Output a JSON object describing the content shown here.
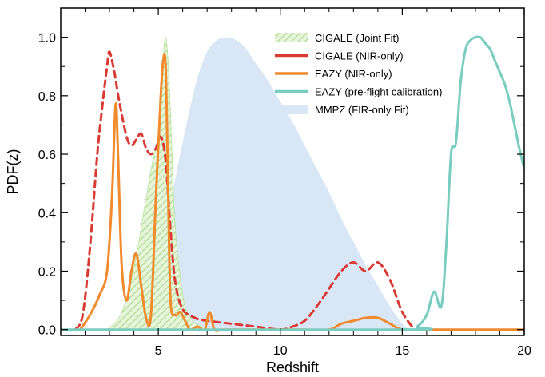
{
  "chart_data": {
    "type": "area",
    "xlabel": "Redshift",
    "ylabel": "PDF(z)",
    "xlim": [
      1,
      20
    ],
    "ylim": [
      -0.02,
      1.1
    ],
    "x_ticks": [
      5,
      10,
      15,
      20
    ],
    "x_tick_labels": [
      "5",
      "10",
      "15",
      "20"
    ],
    "y_ticks": [
      0.0,
      0.2,
      0.4,
      0.6,
      0.8,
      1.0
    ],
    "y_tick_labels": [
      "0.0",
      "0.2",
      "0.4",
      "0.6",
      "0.8",
      "1.0"
    ],
    "legend_position": "top-right",
    "series": [
      {
        "name": "MMPZ (FIR-only Fit)",
        "style": "filled",
        "color": "#d9e6f5",
        "x": [
          4.3,
          4.8,
          5.3,
          5.8,
          6.2,
          6.6,
          7.0,
          7.4,
          7.8,
          8.2,
          8.6,
          9.0,
          9.5,
          10.0,
          10.5,
          11.0,
          11.5,
          12.0,
          12.5,
          13.0,
          13.5,
          14.0,
          14.5,
          15.0,
          15.3
        ],
        "values": [
          0.0,
          0.12,
          0.34,
          0.56,
          0.72,
          0.86,
          0.95,
          0.99,
          1.0,
          0.99,
          0.96,
          0.91,
          0.85,
          0.78,
          0.71,
          0.63,
          0.55,
          0.47,
          0.38,
          0.3,
          0.22,
          0.15,
          0.08,
          0.02,
          0.0
        ]
      },
      {
        "name": "CIGALE (Joint Fit)",
        "style": "hatched",
        "color": "#b9e39c",
        "x": [
          2.9,
          3.3,
          3.6,
          3.9,
          4.2,
          4.5,
          4.8,
          5.0,
          5.1,
          5.2,
          5.3,
          5.4,
          5.5,
          5.6,
          5.7,
          5.9,
          6.1,
          6.4,
          6.8,
          7.2
        ],
        "values": [
          0.0,
          0.03,
          0.08,
          0.17,
          0.3,
          0.45,
          0.59,
          0.66,
          0.8,
          0.93,
          1.0,
          0.92,
          0.74,
          0.52,
          0.34,
          0.18,
          0.08,
          0.03,
          0.01,
          0.0
        ]
      },
      {
        "name": "CIGALE (NIR-only)",
        "style": "dashed",
        "color": "#d93a32",
        "x": [
          1.6,
          1.9,
          2.2,
          2.5,
          2.7,
          2.9,
          3.0,
          3.2,
          3.4,
          3.7,
          3.9,
          4.1,
          4.3,
          4.5,
          4.7,
          4.9,
          5.1,
          5.3,
          5.5,
          5.7,
          6.0,
          6.5,
          7.0,
          8.0,
          9.0,
          10.0,
          10.5,
          11.0,
          11.5,
          12.0,
          12.5,
          13.0,
          13.5,
          14.0,
          14.5,
          15.0,
          15.5
        ],
        "values": [
          0.0,
          0.05,
          0.28,
          0.6,
          0.76,
          0.9,
          0.95,
          0.88,
          0.78,
          0.66,
          0.63,
          0.65,
          0.67,
          0.62,
          0.6,
          0.62,
          0.66,
          0.58,
          0.34,
          0.16,
          0.07,
          0.04,
          0.03,
          0.02,
          0.01,
          0.0,
          0.01,
          0.03,
          0.08,
          0.14,
          0.2,
          0.23,
          0.2,
          0.23,
          0.17,
          0.06,
          0.0
        ]
      },
      {
        "name": "EAZY (NIR-only)",
        "style": "solid",
        "color": "#f08a2c",
        "x": [
          1.8,
          2.2,
          2.6,
          2.9,
          3.1,
          3.25,
          3.35,
          3.5,
          3.7,
          3.9,
          4.1,
          4.3,
          4.5,
          4.7,
          4.9,
          5.1,
          5.2,
          5.3,
          5.4,
          5.5,
          5.7,
          5.9,
          6.1,
          6.3,
          6.6,
          6.9,
          7.1,
          7.3,
          7.6,
          8.0,
          9.0,
          10.0,
          11.0,
          12.0,
          12.5,
          13.0,
          13.5,
          14.0,
          14.5,
          15.0,
          16.0,
          17.0,
          18.0,
          19.0,
          20.0
        ],
        "values": [
          0.0,
          0.05,
          0.12,
          0.2,
          0.45,
          0.77,
          0.6,
          0.22,
          0.1,
          0.2,
          0.26,
          0.15,
          0.04,
          0.05,
          0.45,
          0.8,
          0.92,
          0.9,
          0.5,
          0.1,
          0.05,
          0.06,
          0.03,
          0.0,
          0.01,
          0.0,
          0.06,
          0.0,
          0.0,
          0.0,
          0.0,
          0.0,
          0.0,
          0.0,
          0.02,
          0.03,
          0.04,
          0.04,
          0.02,
          0.0,
          0.0,
          0.0,
          0.0,
          0.0,
          0.0
        ]
      },
      {
        "name": "EAZY (pre-flight calibration)",
        "style": "solid",
        "color": "#78ccc0",
        "x": [
          1.0,
          15.0,
          15.6,
          16.0,
          16.3,
          16.6,
          16.8,
          17.0,
          17.2,
          17.4,
          17.6,
          17.8,
          18.0,
          18.2,
          18.4,
          18.6,
          18.8,
          19.0,
          19.2,
          19.4,
          19.6,
          19.8,
          20.0
        ],
        "values": [
          0.0,
          0.0,
          0.01,
          0.05,
          0.13,
          0.08,
          0.28,
          0.6,
          0.64,
          0.85,
          0.96,
          0.99,
          1.0,
          1.0,
          0.98,
          0.96,
          0.92,
          0.88,
          0.84,
          0.78,
          0.7,
          0.62,
          0.55
        ]
      }
    ]
  }
}
